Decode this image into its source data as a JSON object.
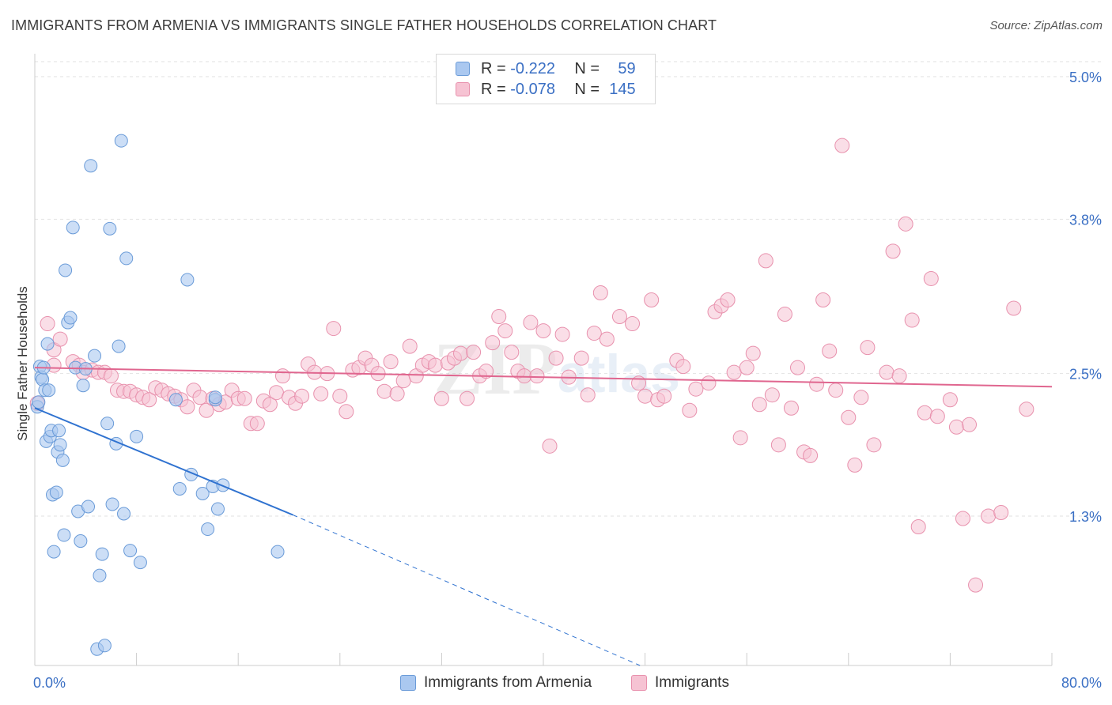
{
  "header": {
    "title": "IMMIGRANTS FROM ARMENIA VS IMMIGRANTS SINGLE FATHER HOUSEHOLDS CORRELATION CHART",
    "source": "Source: ZipAtlas.com"
  },
  "legend": {
    "series1": {
      "r_label": "R =",
      "r_value": "-0.222",
      "n_label": "N =",
      "n_value": "59"
    },
    "series2": {
      "r_label": "R =",
      "r_value": "-0.078",
      "n_label": "N =",
      "n_value": "145"
    }
  },
  "bottom_legend": {
    "series1_label": "Immigrants from Armenia",
    "series2_label": "Immigrants"
  },
  "watermark": {
    "zip": "ZIP",
    "atlas": "atlas"
  },
  "colors": {
    "blue_fill": "#aac8f0",
    "blue_stroke": "#6a9bd8",
    "blue_line": "#2f72d0",
    "pink_fill": "#f6c3d3",
    "pink_stroke": "#e891ad",
    "pink_line": "#e0668f",
    "axis_text": "#3a6fc4",
    "grid": "#e2e2e2"
  },
  "chart_data": {
    "type": "scatter",
    "title": "IMMIGRANTS FROM ARMENIA VS IMMIGRANTS SINGLE FATHER HOUSEHOLDS CORRELATION CHART",
    "xlabel": "",
    "ylabel": "Single Father Households",
    "xlim": [
      0,
      80
    ],
    "ylim": [
      0,
      5.3
    ],
    "x_tick_labels": [
      "0.0%",
      "80.0%"
    ],
    "y_ticks": [
      1.3,
      2.5,
      3.8,
      5.0
    ],
    "y_tick_labels": [
      "1.3%",
      "2.5%",
      "3.8%",
      "5.0%"
    ],
    "grid": true,
    "legend_position": "top-center",
    "series": [
      {
        "name": "Immigrants from Armenia",
        "color": "#aac8f0",
        "trend": {
          "x": [
            0,
            20.3
          ],
          "y": [
            2.21,
            1.31
          ],
          "dashed_to": [
            47.6,
            0
          ]
        },
        "points": [
          [
            0.2,
            2.22
          ],
          [
            0.3,
            2.26
          ],
          [
            0.4,
            2.56
          ],
          [
            0.5,
            2.47
          ],
          [
            0.6,
            2.45
          ],
          [
            0.7,
            2.55
          ],
          [
            0.8,
            2.36
          ],
          [
            0.9,
            1.93
          ],
          [
            1.0,
            2.75
          ],
          [
            1.1,
            2.36
          ],
          [
            1.2,
            1.97
          ],
          [
            1.3,
            2.02
          ],
          [
            1.4,
            1.48
          ],
          [
            1.5,
            1.0
          ],
          [
            1.7,
            1.5
          ],
          [
            1.8,
            1.84
          ],
          [
            1.9,
            2.02
          ],
          [
            2.0,
            1.9
          ],
          [
            2.2,
            1.77
          ],
          [
            2.3,
            1.14
          ],
          [
            2.4,
            3.37
          ],
          [
            2.6,
            2.93
          ],
          [
            2.8,
            2.97
          ],
          [
            3.0,
            3.73
          ],
          [
            3.2,
            2.55
          ],
          [
            3.4,
            1.34
          ],
          [
            3.6,
            1.09
          ],
          [
            3.8,
            2.4
          ],
          [
            4.0,
            2.54
          ],
          [
            4.2,
            1.38
          ],
          [
            4.4,
            4.25
          ],
          [
            4.7,
            2.65
          ],
          [
            4.9,
            0.18
          ],
          [
            5.1,
            0.8
          ],
          [
            5.3,
            0.98
          ],
          [
            5.5,
            0.21
          ],
          [
            5.7,
            2.08
          ],
          [
            5.9,
            3.72
          ],
          [
            6.1,
            1.4
          ],
          [
            6.4,
            1.91
          ],
          [
            6.6,
            2.73
          ],
          [
            6.8,
            4.46
          ],
          [
            7.0,
            1.32
          ],
          [
            7.2,
            3.47
          ],
          [
            7.5,
            1.01
          ],
          [
            8.0,
            1.97
          ],
          [
            8.3,
            0.91
          ],
          [
            11.1,
            2.28
          ],
          [
            11.4,
            1.53
          ],
          [
            12.0,
            3.29
          ],
          [
            12.3,
            1.65
          ],
          [
            13.2,
            1.49
          ],
          [
            13.6,
            1.19
          ],
          [
            14.0,
            1.55
          ],
          [
            14.4,
            1.36
          ],
          [
            14.8,
            1.56
          ],
          [
            14.2,
            2.28
          ],
          [
            19.1,
            1.0
          ],
          [
            14.2,
            2.3
          ]
        ]
      },
      {
        "name": "Immigrants",
        "color": "#f6c3d3",
        "trend": {
          "x": [
            0,
            80
          ],
          "y": [
            2.55,
            2.39
          ]
        },
        "points": [
          [
            0.2,
            2.25
          ],
          [
            1.0,
            2.92
          ],
          [
            1.5,
            2.57
          ],
          [
            1.5,
            2.7
          ],
          [
            2.0,
            2.79
          ],
          [
            3.0,
            2.6
          ],
          [
            3.5,
            2.57
          ],
          [
            3.8,
            2.51
          ],
          [
            4.5,
            2.53
          ],
          [
            5.0,
            2.51
          ],
          [
            5.5,
            2.51
          ],
          [
            6.0,
            2.48
          ],
          [
            6.5,
            2.36
          ],
          [
            7.0,
            2.35
          ],
          [
            7.5,
            2.35
          ],
          [
            8.0,
            2.32
          ],
          [
            8.5,
            2.3
          ],
          [
            9.0,
            2.28
          ],
          [
            9.5,
            2.38
          ],
          [
            10.0,
            2.36
          ],
          [
            10.5,
            2.33
          ],
          [
            11.0,
            2.31
          ],
          [
            11.5,
            2.28
          ],
          [
            12.0,
            2.22
          ],
          [
            12.5,
            2.36
          ],
          [
            13.0,
            2.3
          ],
          [
            13.5,
            2.19
          ],
          [
            14.0,
            2.29
          ],
          [
            14.5,
            2.24
          ],
          [
            15.0,
            2.26
          ],
          [
            15.5,
            2.36
          ],
          [
            16.0,
            2.29
          ],
          [
            16.5,
            2.29
          ],
          [
            17.0,
            2.08
          ],
          [
            17.5,
            2.08
          ],
          [
            18.0,
            2.27
          ],
          [
            18.5,
            2.24
          ],
          [
            19.0,
            2.34
          ],
          [
            19.5,
            2.48
          ],
          [
            20.0,
            2.3
          ],
          [
            20.5,
            2.25
          ],
          [
            21.0,
            2.31
          ],
          [
            21.5,
            2.58
          ],
          [
            22.0,
            2.51
          ],
          [
            22.5,
            2.33
          ],
          [
            23.0,
            2.5
          ],
          [
            23.5,
            2.88
          ],
          [
            24.0,
            2.31
          ],
          [
            24.5,
            2.18
          ],
          [
            25.0,
            2.53
          ],
          [
            25.5,
            2.55
          ],
          [
            26.0,
            2.63
          ],
          [
            26.5,
            2.57
          ],
          [
            27.0,
            2.5
          ],
          [
            27.5,
            2.35
          ],
          [
            28.0,
            2.6
          ],
          [
            28.5,
            2.33
          ],
          [
            29.0,
            2.44
          ],
          [
            29.5,
            2.73
          ],
          [
            30.0,
            2.48
          ],
          [
            30.5,
            2.57
          ],
          [
            31.0,
            2.6
          ],
          [
            31.5,
            2.57
          ],
          [
            32.0,
            2.29
          ],
          [
            32.5,
            2.59
          ],
          [
            33.0,
            2.63
          ],
          [
            33.5,
            2.67
          ],
          [
            34.0,
            2.29
          ],
          [
            34.5,
            2.68
          ],
          [
            35.0,
            2.48
          ],
          [
            35.5,
            2.52
          ],
          [
            36.0,
            2.76
          ],
          [
            36.5,
            2.98
          ],
          [
            37.0,
            2.86
          ],
          [
            37.5,
            2.68
          ],
          [
            38.0,
            2.52
          ],
          [
            38.5,
            2.48
          ],
          [
            39.0,
            2.93
          ],
          [
            39.5,
            2.48
          ],
          [
            40.0,
            2.86
          ],
          [
            40.5,
            1.89
          ],
          [
            41.0,
            2.63
          ],
          [
            41.5,
            2.83
          ],
          [
            42.0,
            2.47
          ],
          [
            43.0,
            2.63
          ],
          [
            43.5,
            2.32
          ],
          [
            44.0,
            2.84
          ],
          [
            44.5,
            3.18
          ],
          [
            45.0,
            2.79
          ],
          [
            46.0,
            2.98
          ],
          [
            47.0,
            2.92
          ],
          [
            47.5,
            2.42
          ],
          [
            48.0,
            2.31
          ],
          [
            48.5,
            3.12
          ],
          [
            49.0,
            2.28
          ],
          [
            49.5,
            2.31
          ],
          [
            50.5,
            2.61
          ],
          [
            51.0,
            2.56
          ],
          [
            51.5,
            2.19
          ],
          [
            52.0,
            2.37
          ],
          [
            53.0,
            2.42
          ],
          [
            53.5,
            3.02
          ],
          [
            54.0,
            3.07
          ],
          [
            54.5,
            3.12
          ],
          [
            55.0,
            2.51
          ],
          [
            55.5,
            1.96
          ],
          [
            56.0,
            2.55
          ],
          [
            56.5,
            2.67
          ],
          [
            57.0,
            2.24
          ],
          [
            57.5,
            3.45
          ],
          [
            58.0,
            2.32
          ],
          [
            58.5,
            1.9
          ],
          [
            59.0,
            3.0
          ],
          [
            59.5,
            2.21
          ],
          [
            60.0,
            2.55
          ],
          [
            60.5,
            1.84
          ],
          [
            61.0,
            1.81
          ],
          [
            61.5,
            2.41
          ],
          [
            62.0,
            3.12
          ],
          [
            62.5,
            2.69
          ],
          [
            63.0,
            2.36
          ],
          [
            63.5,
            4.42
          ],
          [
            64.0,
            2.13
          ],
          [
            64.5,
            1.73
          ],
          [
            65.0,
            2.3
          ],
          [
            65.5,
            2.72
          ],
          [
            66.0,
            1.9
          ],
          [
            67.0,
            2.51
          ],
          [
            67.5,
            3.53
          ],
          [
            68.0,
            2.48
          ],
          [
            68.5,
            3.76
          ],
          [
            69.0,
            2.95
          ],
          [
            69.5,
            1.21
          ],
          [
            70.0,
            2.17
          ],
          [
            70.5,
            3.3
          ],
          [
            71.0,
            2.14
          ],
          [
            72.0,
            2.28
          ],
          [
            72.5,
            2.05
          ],
          [
            73.0,
            1.28
          ],
          [
            73.5,
            2.07
          ],
          [
            74.0,
            0.72
          ],
          [
            75.0,
            1.3
          ],
          [
            76.0,
            1.33
          ],
          [
            77.0,
            3.05
          ],
          [
            78.0,
            2.2
          ]
        ]
      }
    ]
  }
}
